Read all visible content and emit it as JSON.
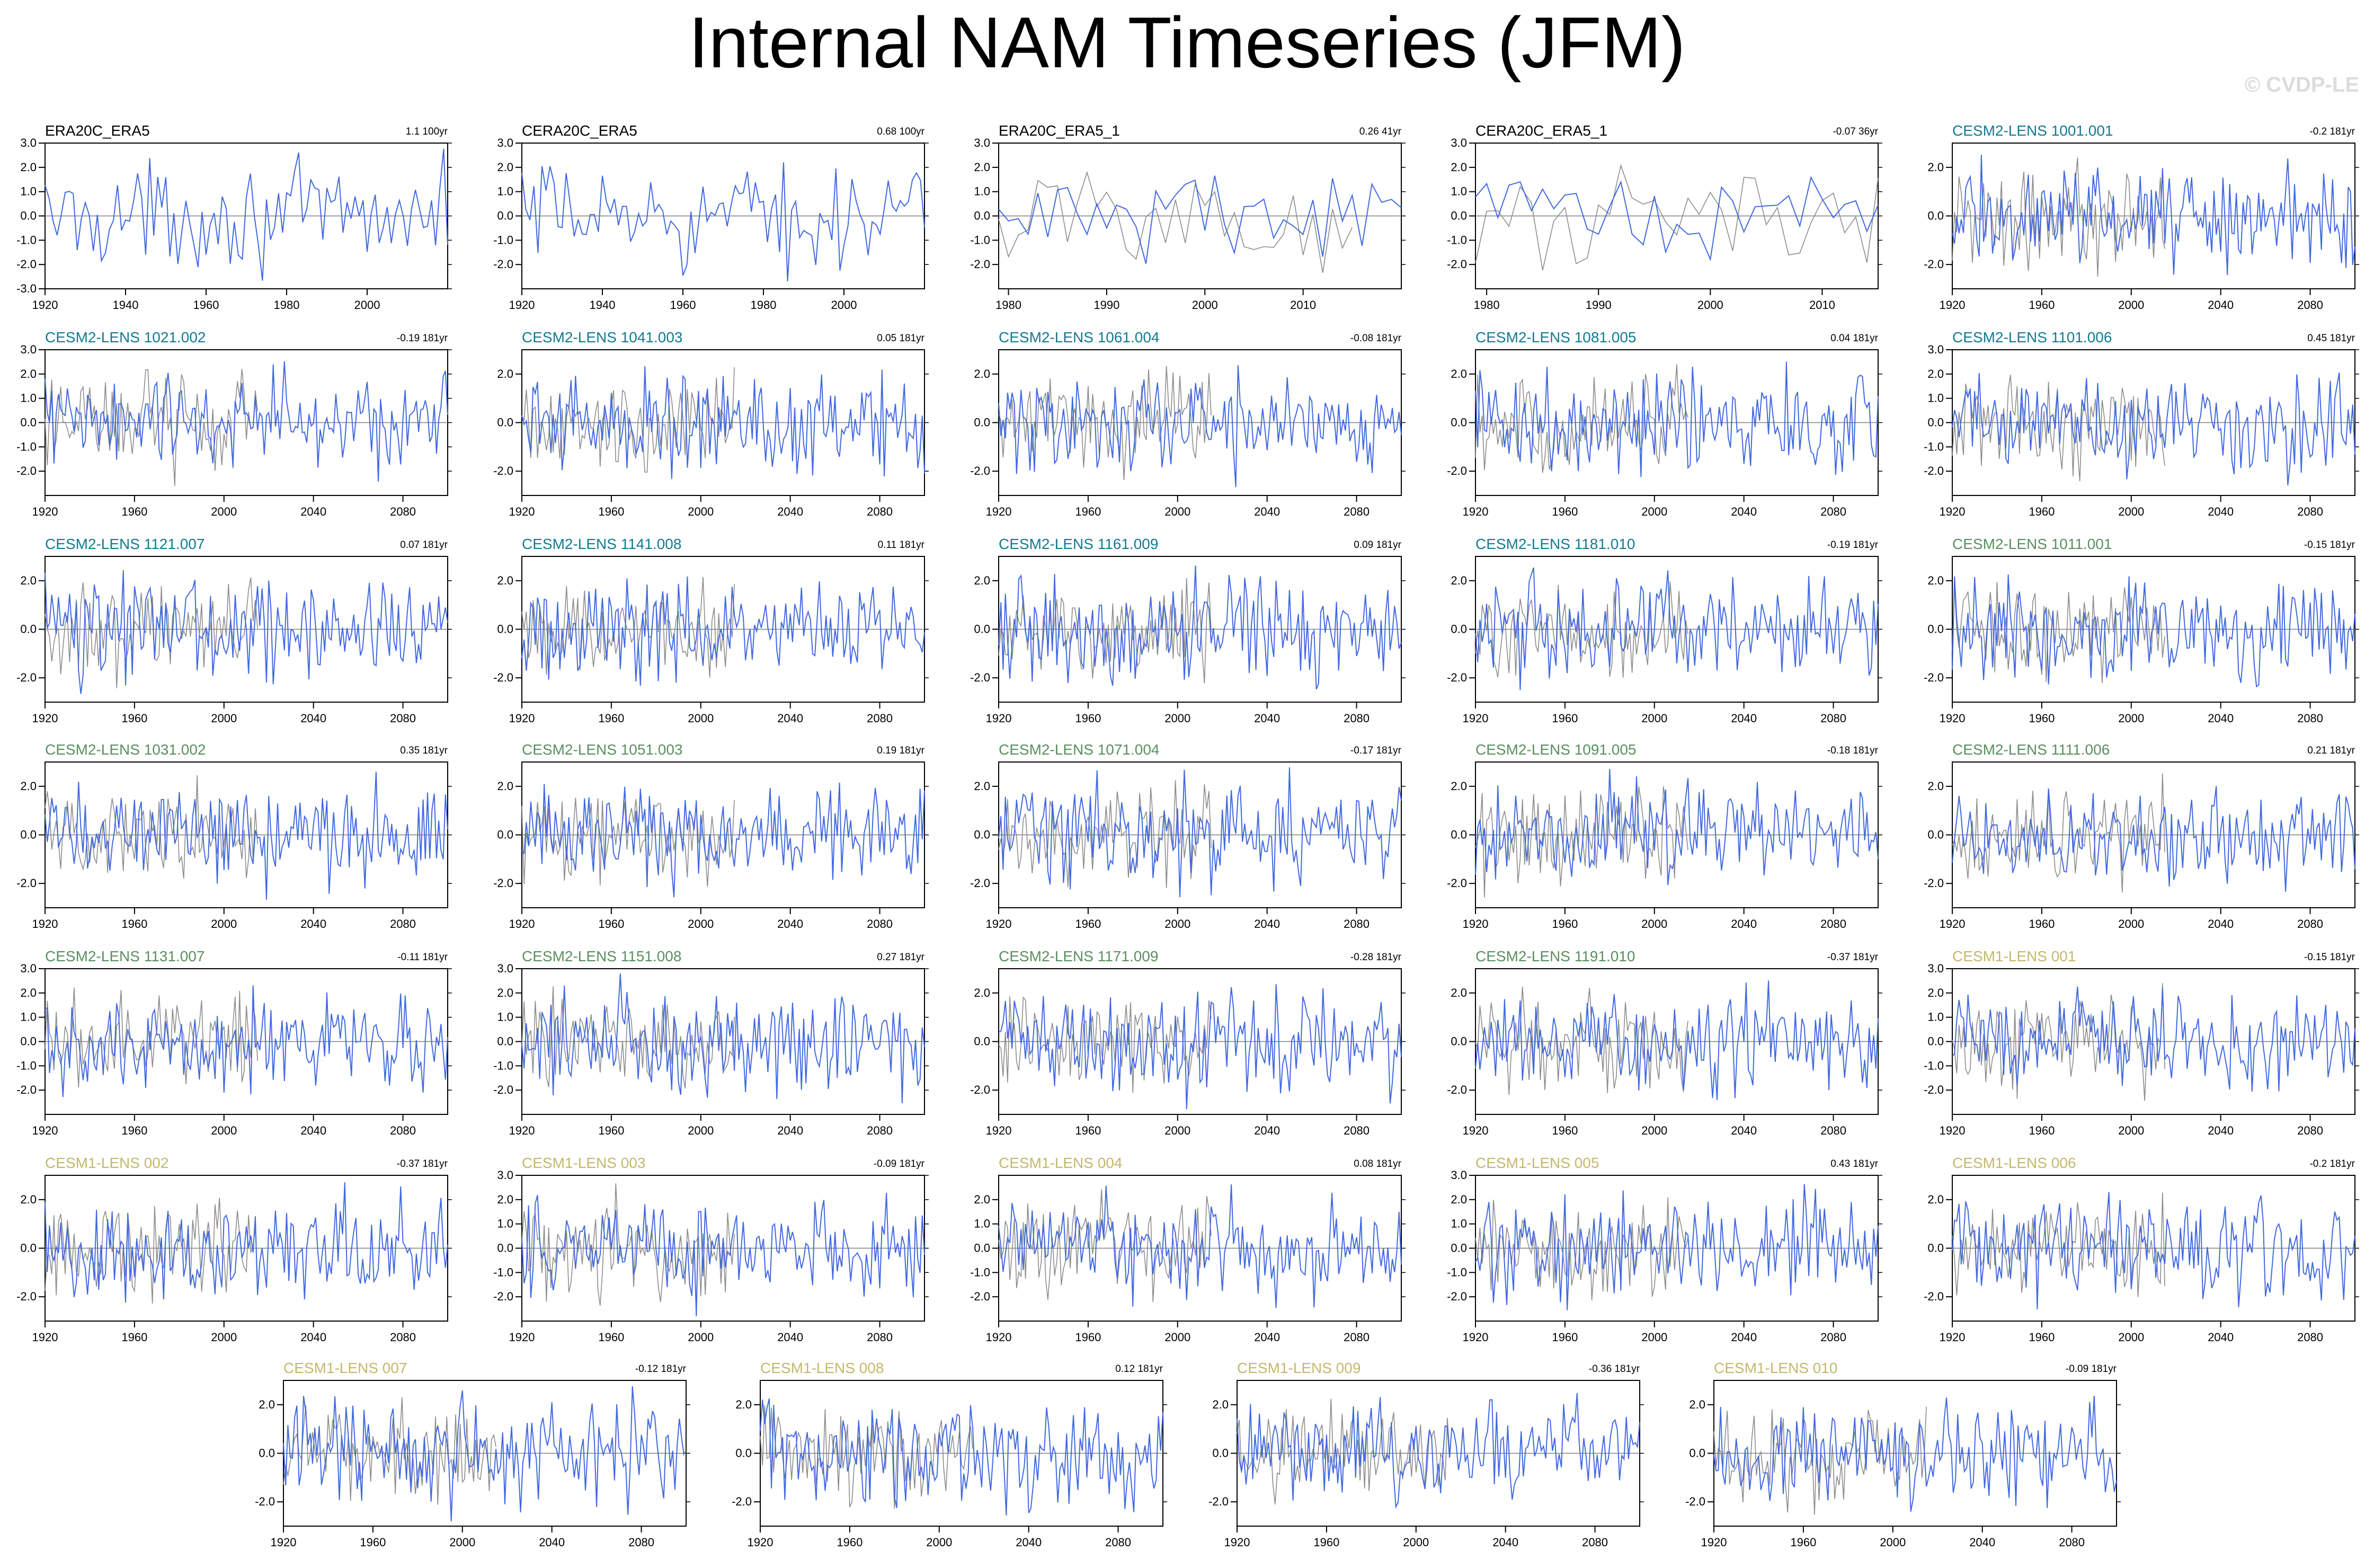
{
  "title": "Internal NAM Timeseries (JFM)",
  "watermark": "© CVDP-LE",
  "colors": {
    "series_line": "#4169e1",
    "reference_line": "#8c8c8c",
    "zero_line": "#7f7f7f",
    "title_obs": "#000000",
    "title_cesm2_lens_a": "#127a91",
    "title_cesm2_lens_b": "#5a8f5f",
    "title_cesm1_lens": "#c4b86a"
  },
  "chart_data": [
    {
      "type": "line",
      "title": "ERA20C_ERA5",
      "trend": "1.1 100yr",
      "title_color": "obs",
      "x_range": [
        1920,
        2020
      ],
      "ylim": [
        -3,
        3
      ],
      "xticks": [
        "1920",
        "1940",
        "1960",
        "1980",
        "2000"
      ],
      "yticks": [
        "3.0",
        "2.0",
        "1.0",
        "0.0",
        "-1.0",
        "-2.0",
        "-3.0"
      ],
      "reference": false
    },
    {
      "type": "line",
      "title": "CERA20C_ERA5",
      "trend": "0.68 100yr",
      "title_color": "obs",
      "x_range": [
        1920,
        2020
      ],
      "ylim": [
        -3,
        3
      ],
      "xticks": [
        "1920",
        "1940",
        "1960",
        "1980",
        "2000"
      ],
      "yticks": [
        "3.0",
        "2.0",
        "1.0",
        "0.0",
        "-1.0",
        "-2.0"
      ],
      "reference": false
    },
    {
      "type": "line",
      "title": "ERA20C_ERA5_1",
      "trend": "0.26 41yr",
      "title_color": "obs",
      "x_range": [
        1979,
        2020
      ],
      "ylim": [
        -3,
        3
      ],
      "xticks": [
        "1980",
        "1990",
        "2000",
        "2010"
      ],
      "yticks": [
        "3.0",
        "2.0",
        "1.0",
        "0.0",
        "-1.0",
        "-2.0"
      ],
      "reference": true
    },
    {
      "type": "line",
      "title": "CERA20C_ERA5_1",
      "trend": "-0.07 36yr",
      "title_color": "obs",
      "x_range": [
        1979,
        2015
      ],
      "ylim": [
        -3,
        3
      ],
      "xticks": [
        "1980",
        "1990",
        "2000",
        "2010"
      ],
      "yticks": [
        "3.0",
        "2.0",
        "1.0",
        "0.0",
        "-1.0",
        "-2.0"
      ],
      "reference": true
    },
    {
      "type": "line",
      "title": "CESM2-LENS 1001.001",
      "trend": "-0.2 181yr",
      "title_color": "cesm2_lens_a",
      "x_range": [
        1920,
        2100
      ],
      "ylim": [
        -3,
        3
      ],
      "xticks": [
        "1920",
        "1960",
        "2000",
        "2040",
        "2080"
      ],
      "yticks": [
        "2.0",
        "0.0",
        "-2.0"
      ],
      "reference": true
    },
    {
      "type": "line",
      "title": "CESM2-LENS 1021.002",
      "trend": "-0.19 181yr",
      "title_color": "cesm2_lens_a",
      "x_range": [
        1920,
        2100
      ],
      "ylim": [
        -3,
        3
      ],
      "xticks": [
        "1920",
        "1960",
        "2000",
        "2040",
        "2080"
      ],
      "yticks": [
        "3.0",
        "2.0",
        "1.0",
        "0.0",
        "-1.0",
        "-2.0"
      ],
      "reference": true
    },
    {
      "type": "line",
      "title": "CESM2-LENS 1041.003",
      "trend": "0.05 181yr",
      "title_color": "cesm2_lens_a",
      "x_range": [
        1920,
        2100
      ],
      "ylim": [
        -3,
        3
      ],
      "xticks": [
        "1920",
        "1960",
        "2000",
        "2040",
        "2080"
      ],
      "yticks": [
        "2.0",
        "0.0",
        "-2.0"
      ],
      "reference": true
    },
    {
      "type": "line",
      "title": "CESM2-LENS 1061.004",
      "trend": "-0.08 181yr",
      "title_color": "cesm2_lens_a",
      "x_range": [
        1920,
        2100
      ],
      "ylim": [
        -3,
        3
      ],
      "xticks": [
        "1920",
        "1960",
        "2000",
        "2040",
        "2080"
      ],
      "yticks": [
        "2.0",
        "0.0",
        "-2.0"
      ],
      "reference": true
    },
    {
      "type": "line",
      "title": "CESM2-LENS 1081.005",
      "trend": "0.04 181yr",
      "title_color": "cesm2_lens_a",
      "x_range": [
        1920,
        2100
      ],
      "ylim": [
        -3,
        3
      ],
      "xticks": [
        "1920",
        "1960",
        "2000",
        "2040",
        "2080"
      ],
      "yticks": [
        "2.0",
        "0.0",
        "-2.0"
      ],
      "reference": true
    },
    {
      "type": "line",
      "title": "CESM2-LENS 1101.006",
      "trend": "0.45 181yr",
      "title_color": "cesm2_lens_a",
      "x_range": [
        1920,
        2100
      ],
      "ylim": [
        -3,
        3
      ],
      "xticks": [
        "1920",
        "1960",
        "2000",
        "2040",
        "2080"
      ],
      "yticks": [
        "3.0",
        "2.0",
        "1.0",
        "0.0",
        "-1.0",
        "-2.0"
      ],
      "reference": true
    },
    {
      "type": "line",
      "title": "CESM2-LENS 1121.007",
      "trend": "0.07 181yr",
      "title_color": "cesm2_lens_a",
      "x_range": [
        1920,
        2100
      ],
      "ylim": [
        -3,
        3
      ],
      "xticks": [
        "1920",
        "1960",
        "2000",
        "2040",
        "2080"
      ],
      "yticks": [
        "2.0",
        "0.0",
        "-2.0"
      ],
      "reference": true
    },
    {
      "type": "line",
      "title": "CESM2-LENS 1141.008",
      "trend": "0.11 181yr",
      "title_color": "cesm2_lens_a",
      "x_range": [
        1920,
        2100
      ],
      "ylim": [
        -3,
        3
      ],
      "xticks": [
        "1920",
        "1960",
        "2000",
        "2040",
        "2080"
      ],
      "yticks": [
        "2.0",
        "0.0",
        "-2.0"
      ],
      "reference": true
    },
    {
      "type": "line",
      "title": "CESM2-LENS 1161.009",
      "trend": "0.09 181yr",
      "title_color": "cesm2_lens_a",
      "x_range": [
        1920,
        2100
      ],
      "ylim": [
        -3,
        3
      ],
      "xticks": [
        "1920",
        "1960",
        "2000",
        "2040",
        "2080"
      ],
      "yticks": [
        "2.0",
        "0.0",
        "-2.0"
      ],
      "reference": true
    },
    {
      "type": "line",
      "title": "CESM2-LENS 1181.010",
      "trend": "-0.19 181yr",
      "title_color": "cesm2_lens_a",
      "x_range": [
        1920,
        2100
      ],
      "ylim": [
        -3,
        3
      ],
      "xticks": [
        "1920",
        "1960",
        "2000",
        "2040",
        "2080"
      ],
      "yticks": [
        "2.0",
        "0.0",
        "-2.0"
      ],
      "reference": true
    },
    {
      "type": "line",
      "title": "CESM2-LENS 1011.001",
      "trend": "-0.15 181yr",
      "title_color": "cesm2_lens_b",
      "x_range": [
        1920,
        2100
      ],
      "ylim": [
        -3,
        3
      ],
      "xticks": [
        "1920",
        "1960",
        "2000",
        "2040",
        "2080"
      ],
      "yticks": [
        "2.0",
        "0.0",
        "-2.0"
      ],
      "reference": true
    },
    {
      "type": "line",
      "title": "CESM2-LENS 1031.002",
      "trend": "0.35 181yr",
      "title_color": "cesm2_lens_b",
      "x_range": [
        1920,
        2100
      ],
      "ylim": [
        -3,
        3
      ],
      "xticks": [
        "1920",
        "1960",
        "2000",
        "2040",
        "2080"
      ],
      "yticks": [
        "2.0",
        "0.0",
        "-2.0"
      ],
      "reference": true
    },
    {
      "type": "line",
      "title": "CESM2-LENS 1051.003",
      "trend": "0.19 181yr",
      "title_color": "cesm2_lens_b",
      "x_range": [
        1920,
        2100
      ],
      "ylim": [
        -3,
        3
      ],
      "xticks": [
        "1920",
        "1960",
        "2000",
        "2040",
        "2080"
      ],
      "yticks": [
        "2.0",
        "0.0",
        "-2.0"
      ],
      "reference": true
    },
    {
      "type": "line",
      "title": "CESM2-LENS 1071.004",
      "trend": "-0.17 181yr",
      "title_color": "cesm2_lens_b",
      "x_range": [
        1920,
        2100
      ],
      "ylim": [
        -3,
        3
      ],
      "xticks": [
        "1920",
        "1960",
        "2000",
        "2040",
        "2080"
      ],
      "yticks": [
        "2.0",
        "0.0",
        "-2.0"
      ],
      "reference": true
    },
    {
      "type": "line",
      "title": "CESM2-LENS 1091.005",
      "trend": "-0.18 181yr",
      "title_color": "cesm2_lens_b",
      "x_range": [
        1920,
        2100
      ],
      "ylim": [
        -3,
        3
      ],
      "xticks": [
        "1920",
        "1960",
        "2000",
        "2040",
        "2080"
      ],
      "yticks": [
        "2.0",
        "0.0",
        "-2.0"
      ],
      "reference": true
    },
    {
      "type": "line",
      "title": "CESM2-LENS 1111.006",
      "trend": "0.21 181yr",
      "title_color": "cesm2_lens_b",
      "x_range": [
        1920,
        2100
      ],
      "ylim": [
        -3,
        3
      ],
      "xticks": [
        "1920",
        "1960",
        "2000",
        "2040",
        "2080"
      ],
      "yticks": [
        "2.0",
        "0.0",
        "-2.0"
      ],
      "reference": true
    },
    {
      "type": "line",
      "title": "CESM2-LENS 1131.007",
      "trend": "-0.11 181yr",
      "title_color": "cesm2_lens_b",
      "x_range": [
        1920,
        2100
      ],
      "ylim": [
        -3,
        3
      ],
      "xticks": [
        "1920",
        "1960",
        "2000",
        "2040",
        "2080"
      ],
      "yticks": [
        "3.0",
        "2.0",
        "1.0",
        "0.0",
        "-1.0",
        "-2.0"
      ],
      "reference": true
    },
    {
      "type": "line",
      "title": "CESM2-LENS 1151.008",
      "trend": "0.27 181yr",
      "title_color": "cesm2_lens_b",
      "x_range": [
        1920,
        2100
      ],
      "ylim": [
        -3,
        3
      ],
      "xticks": [
        "1920",
        "1960",
        "2000",
        "2040",
        "2080"
      ],
      "yticks": [
        "3.0",
        "2.0",
        "1.0",
        "0.0",
        "-1.0",
        "-2.0"
      ],
      "reference": true
    },
    {
      "type": "line",
      "title": "CESM2-LENS 1171.009",
      "trend": "-0.28 181yr",
      "title_color": "cesm2_lens_b",
      "x_range": [
        1920,
        2100
      ],
      "ylim": [
        -3,
        3
      ],
      "xticks": [
        "1920",
        "1960",
        "2000",
        "2040",
        "2080"
      ],
      "yticks": [
        "2.0",
        "0.0",
        "-2.0"
      ],
      "reference": true
    },
    {
      "type": "line",
      "title": "CESM2-LENS 1191.010",
      "trend": "-0.37 181yr",
      "title_color": "cesm2_lens_b",
      "x_range": [
        1920,
        2100
      ],
      "ylim": [
        -3,
        3
      ],
      "xticks": [
        "1920",
        "1960",
        "2000",
        "2040",
        "2080"
      ],
      "yticks": [
        "2.0",
        "0.0",
        "-2.0"
      ],
      "reference": true
    },
    {
      "type": "line",
      "title": "CESM1-LENS 001",
      "trend": "-0.15 181yr",
      "title_color": "cesm1_lens",
      "x_range": [
        1920,
        2100
      ],
      "ylim": [
        -3,
        3
      ],
      "xticks": [
        "1920",
        "1960",
        "2000",
        "2040",
        "2080"
      ],
      "yticks": [
        "3.0",
        "2.0",
        "1.0",
        "0.0",
        "-1.0",
        "-2.0"
      ],
      "reference": true
    },
    {
      "type": "line",
      "title": "CESM1-LENS 002",
      "trend": "-0.37 181yr",
      "title_color": "cesm1_lens",
      "x_range": [
        1920,
        2100
      ],
      "ylim": [
        -3,
        3
      ],
      "xticks": [
        "1920",
        "1960",
        "2000",
        "2040",
        "2080"
      ],
      "yticks": [
        "2.0",
        "0.0",
        "-2.0"
      ],
      "reference": true
    },
    {
      "type": "line",
      "title": "CESM1-LENS 003",
      "trend": "-0.09 181yr",
      "title_color": "cesm1_lens",
      "x_range": [
        1920,
        2100
      ],
      "ylim": [
        -3,
        3
      ],
      "xticks": [
        "1920",
        "1960",
        "2000",
        "2040",
        "2080"
      ],
      "yticks": [
        "3.0",
        "2.0",
        "1.0",
        "0.0",
        "-1.0",
        "-2.0"
      ],
      "reference": true
    },
    {
      "type": "line",
      "title": "CESM1-LENS 004",
      "trend": "0.08 181yr",
      "title_color": "cesm1_lens",
      "x_range": [
        1920,
        2100
      ],
      "ylim": [
        -3,
        3
      ],
      "xticks": [
        "1920",
        "1960",
        "2000",
        "2040",
        "2080"
      ],
      "yticks": [
        "2.0",
        "1.0",
        "0.0",
        "-1.0",
        "-2.0"
      ],
      "reference": true
    },
    {
      "type": "line",
      "title": "CESM1-LENS 005",
      "trend": "0.43 181yr",
      "title_color": "cesm1_lens",
      "x_range": [
        1920,
        2100
      ],
      "ylim": [
        -3,
        3
      ],
      "xticks": [
        "1920",
        "1960",
        "2000",
        "2040",
        "2080"
      ],
      "yticks": [
        "3.0",
        "2.0",
        "1.0",
        "0.0",
        "-1.0",
        "-2.0"
      ],
      "reference": true
    },
    {
      "type": "line",
      "title": "CESM1-LENS 006",
      "trend": "-0.2 181yr",
      "title_color": "cesm1_lens",
      "x_range": [
        1920,
        2100
      ],
      "ylim": [
        -3,
        3
      ],
      "xticks": [
        "1920",
        "1960",
        "2000",
        "2040",
        "2080"
      ],
      "yticks": [
        "2.0",
        "0.0",
        "-2.0"
      ],
      "reference": true
    },
    {
      "type": "line",
      "title": "CESM1-LENS 007",
      "trend": "-0.12 181yr",
      "title_color": "cesm1_lens",
      "x_range": [
        1920,
        2100
      ],
      "ylim": [
        -3,
        3
      ],
      "xticks": [
        "1920",
        "1960",
        "2000",
        "2040",
        "2080"
      ],
      "yticks": [
        "2.0",
        "0.0",
        "-2.0"
      ],
      "reference": true
    },
    {
      "type": "line",
      "title": "CESM1-LENS 008",
      "trend": "0.12 181yr",
      "title_color": "cesm1_lens",
      "x_range": [
        1920,
        2100
      ],
      "ylim": [
        -3,
        3
      ],
      "xticks": [
        "1920",
        "1960",
        "2000",
        "2040",
        "2080"
      ],
      "yticks": [
        "2.0",
        "0.0",
        "-2.0"
      ],
      "reference": true
    },
    {
      "type": "line",
      "title": "CESM1-LENS 009",
      "trend": "-0.36 181yr",
      "title_color": "cesm1_lens",
      "x_range": [
        1920,
        2100
      ],
      "ylim": [
        -3,
        3
      ],
      "xticks": [
        "1920",
        "1960",
        "2000",
        "2040",
        "2080"
      ],
      "yticks": [
        "2.0",
        "0.0",
        "-2.0"
      ],
      "reference": true
    },
    {
      "type": "line",
      "title": "CESM1-LENS 010",
      "trend": "-0.09 181yr",
      "title_color": "cesm1_lens",
      "x_range": [
        1920,
        2100
      ],
      "ylim": [
        -3,
        3
      ],
      "xticks": [
        "1920",
        "1960",
        "2000",
        "2040",
        "2080"
      ],
      "yticks": [
        "2.0",
        "0.0",
        "-2.0"
      ],
      "reference": true
    }
  ]
}
